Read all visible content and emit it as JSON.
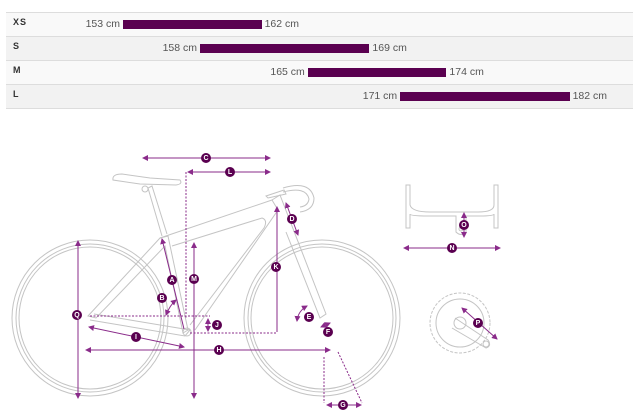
{
  "size_chart": {
    "unit": "cm",
    "bar_color": "#5a0050",
    "rows": [
      {
        "size": "XS",
        "min": 153,
        "max": 162,
        "min_label": "153 cm",
        "max_label": "162 cm"
      },
      {
        "size": "S",
        "min": 158,
        "max": 169,
        "min_label": "158 cm",
        "max_label": "169 cm"
      },
      {
        "size": "M",
        "min": 165,
        "max": 174,
        "min_label": "165 cm",
        "max_label": "174 cm"
      },
      {
        "size": "L",
        "min": 171,
        "max": 182,
        "min_label": "171 cm",
        "max_label": "182 cm"
      }
    ]
  },
  "geometry_diagram": {
    "accent_color": "#8a2b8a",
    "badge_color": "#5a0050",
    "line_color": "#bdbdbd",
    "labels": {
      "A": "A",
      "B": "B",
      "C": "C",
      "D": "D",
      "E": "E",
      "F": "F",
      "G": "G",
      "H": "H",
      "I": "I",
      "J": "J",
      "K": "K",
      "L": "L",
      "M": "M",
      "N": "N",
      "O": "O",
      "P": "P",
      "Q": "Q"
    }
  }
}
